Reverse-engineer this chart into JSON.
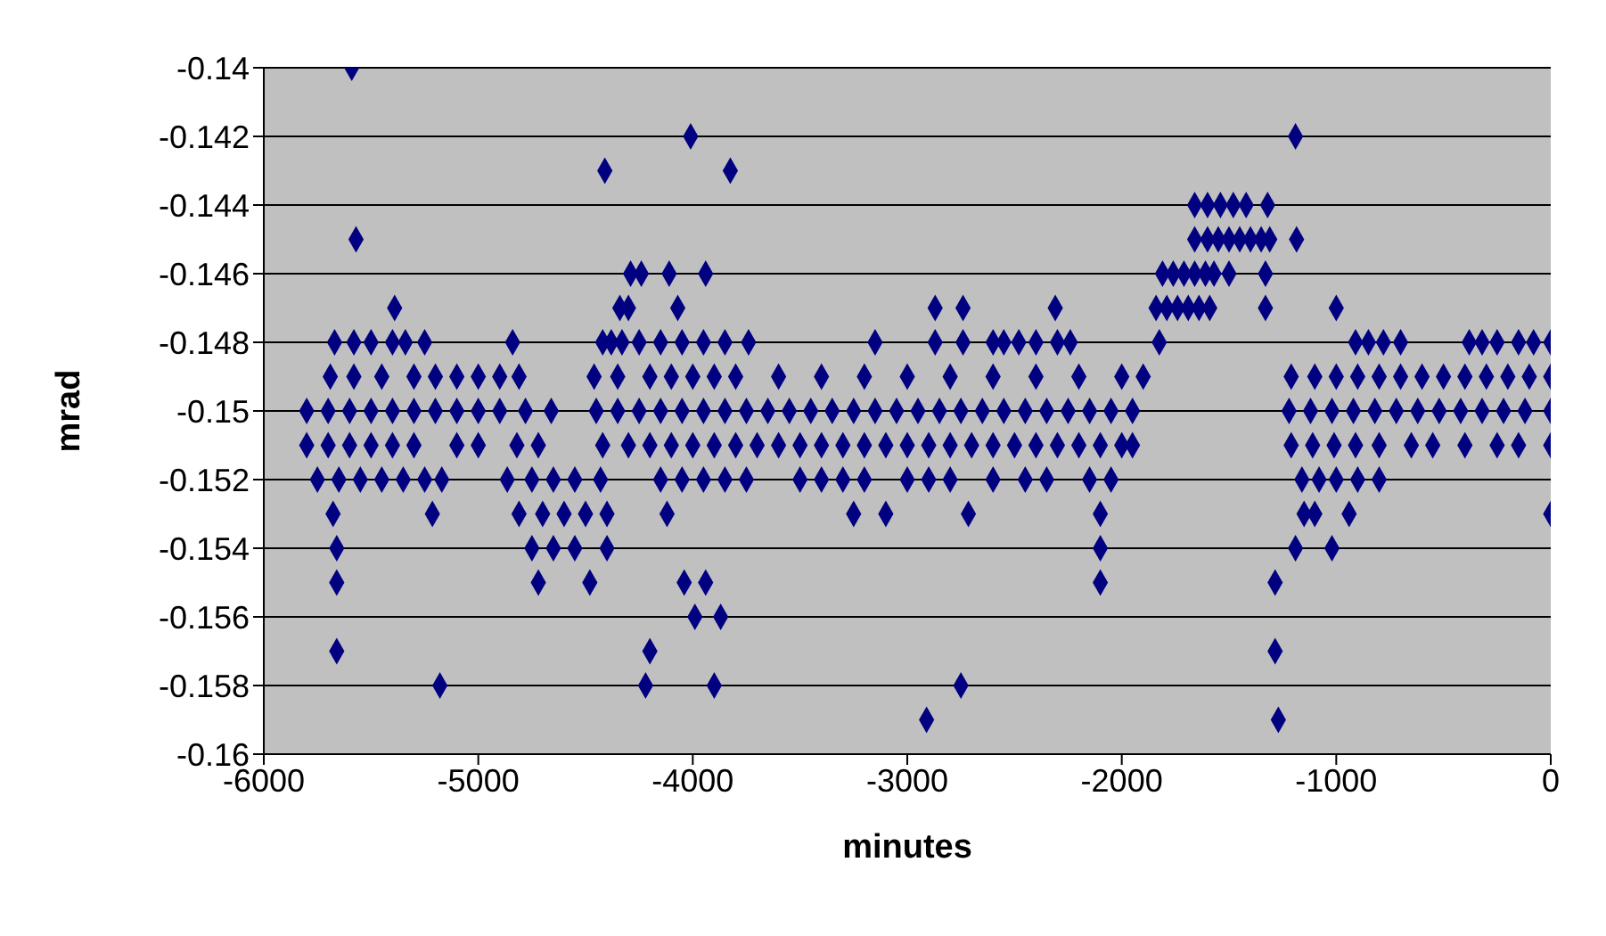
{
  "chart_data": {
    "type": "scatter",
    "xlabel": "minutes",
    "ylabel": "mrad",
    "xlim": [
      -6000,
      0
    ],
    "xticks": [
      -6000,
      -5000,
      -4000,
      -3000,
      -2000,
      -1000,
      0
    ],
    "ylim": [
      -0.16,
      -0.14
    ],
    "yticks": [
      -0.16,
      -0.158,
      -0.156,
      -0.154,
      -0.152,
      -0.15,
      -0.148,
      -0.146,
      -0.144,
      -0.142,
      -0.14
    ],
    "grid": "y",
    "legend": false,
    "marker": "diamond",
    "series": [
      {
        "color": "#000080",
        "x": [
          -5590
        ],
        "values": [
          -0.14
        ]
      },
      {
        "color": "#000080",
        "x": [
          -4010,
          -1190
        ],
        "values": [
          -0.142,
          -0.142
        ]
      },
      {
        "color": "#000080",
        "x": [
          -4410,
          -3825
        ],
        "values": [
          -0.143,
          -0.143
        ]
      },
      {
        "color": "#000080",
        "x": [
          -1660,
          -1600,
          -1540,
          -1480,
          -1420,
          -1320
        ],
        "values": [
          -0.144,
          -0.144,
          -0.144,
          -0.144,
          -0.144,
          -0.144
        ]
      },
      {
        "color": "#000080",
        "x": [
          -5570,
          -1660,
          -1600,
          -1550,
          -1500,
          -1450,
          -1400,
          -1350,
          -1310,
          -1185
        ],
        "values": [
          -0.145,
          -0.145,
          -0.145,
          -0.145,
          -0.145,
          -0.145,
          -0.145,
          -0.145,
          -0.145,
          -0.145
        ]
      },
      {
        "color": "#000080",
        "x": [
          -4290,
          -4240,
          -4110,
          -3940,
          -1810,
          -1760,
          -1710,
          -1660,
          -1610,
          -1570,
          -1500,
          -1330
        ],
        "values": [
          -0.146,
          -0.146,
          -0.146,
          -0.146,
          -0.146,
          -0.146,
          -0.146,
          -0.146,
          -0.146,
          -0.146,
          -0.146,
          -0.146
        ]
      },
      {
        "color": "#000080",
        "x": [
          -5390,
          -4340,
          -4300,
          -4070,
          -2870,
          -2740,
          -2310,
          -1840,
          -1790,
          -1740,
          -1690,
          -1640,
          -1590,
          -1330,
          -1000
        ],
        "values": [
          -0.147,
          -0.147,
          -0.147,
          -0.147,
          -0.147,
          -0.147,
          -0.147,
          -0.147,
          -0.147,
          -0.147,
          -0.147,
          -0.147,
          -0.147,
          -0.147,
          -0.147
        ]
      },
      {
        "color": "#000080",
        "x": [
          -5670,
          -5580,
          -5500,
          -5400,
          -5340,
          -5250,
          -4840,
          -4420,
          -4380,
          -4330,
          -4250,
          -4150,
          -4050,
          -3950,
          -3850,
          -3740,
          -3150,
          -2870,
          -2740,
          -2600,
          -2550,
          -2480,
          -2400,
          -2300,
          -2240,
          -1825,
          -910,
          -850,
          -780,
          -700,
          -380,
          -320,
          -250,
          -150,
          -80,
          0
        ],
        "values": [
          -0.148,
          -0.148,
          -0.148,
          -0.148,
          -0.148,
          -0.148,
          -0.148,
          -0.148,
          -0.148,
          -0.148,
          -0.148,
          -0.148,
          -0.148,
          -0.148,
          -0.148,
          -0.148,
          -0.148,
          -0.148,
          -0.148,
          -0.148,
          -0.148,
          -0.148,
          -0.148,
          -0.148,
          -0.148,
          -0.148,
          -0.148,
          -0.148,
          -0.148,
          -0.148,
          -0.148,
          -0.148,
          -0.148,
          -0.148,
          -0.148,
          -0.148
        ]
      },
      {
        "color": "#000080",
        "x": [
          -5690,
          -5580,
          -5450,
          -5300,
          -5200,
          -5100,
          -5000,
          -4900,
          -4810,
          -4460,
          -4350,
          -4200,
          -4100,
          -4000,
          -3900,
          -3800,
          -3600,
          -3400,
          -3200,
          -3000,
          -2800,
          -2600,
          -2400,
          -2200,
          -2000,
          -1900,
          -1210,
          -1100,
          -1000,
          -900,
          -800,
          -700,
          -600,
          -500,
          -400,
          -300,
          -200,
          -100,
          0
        ],
        "values": [
          -0.149,
          -0.149,
          -0.149,
          -0.149,
          -0.149,
          -0.149,
          -0.149,
          -0.149,
          -0.149,
          -0.149,
          -0.149,
          -0.149,
          -0.149,
          -0.149,
          -0.149,
          -0.149,
          -0.149,
          -0.149,
          -0.149,
          -0.149,
          -0.149,
          -0.149,
          -0.149,
          -0.149,
          -0.149,
          -0.149,
          -0.149,
          -0.149,
          -0.149,
          -0.149,
          -0.149,
          -0.149,
          -0.149,
          -0.149,
          -0.149,
          -0.149,
          -0.149,
          -0.149,
          -0.149
        ]
      },
      {
        "color": "#000080",
        "x": [
          -5800,
          -5700,
          -5600,
          -5500,
          -5400,
          -5300,
          -5200,
          -5100,
          -5000,
          -4900,
          -4780,
          -4660,
          -4450,
          -4350,
          -4250,
          -4150,
          -4050,
          -3950,
          -3850,
          -3750,
          -3650,
          -3550,
          -3450,
          -3350,
          -3250,
          -3150,
          -3050,
          -2950,
          -2850,
          -2750,
          -2650,
          -2550,
          -2450,
          -2350,
          -2250,
          -2150,
          -2050,
          -1950,
          -1220,
          -1120,
          -1020,
          -920,
          -820,
          -720,
          -620,
          -520,
          -420,
          -320,
          -220,
          -120,
          0
        ],
        "values": [
          -0.15,
          -0.15,
          -0.15,
          -0.15,
          -0.15,
          -0.15,
          -0.15,
          -0.15,
          -0.15,
          -0.15,
          -0.15,
          -0.15,
          -0.15,
          -0.15,
          -0.15,
          -0.15,
          -0.15,
          -0.15,
          -0.15,
          -0.15,
          -0.15,
          -0.15,
          -0.15,
          -0.15,
          -0.15,
          -0.15,
          -0.15,
          -0.15,
          -0.15,
          -0.15,
          -0.15,
          -0.15,
          -0.15,
          -0.15,
          -0.15,
          -0.15,
          -0.15,
          -0.15,
          -0.15,
          -0.15,
          -0.15,
          -0.15,
          -0.15,
          -0.15,
          -0.15,
          -0.15,
          -0.15,
          -0.15,
          -0.15,
          -0.15,
          -0.15
        ]
      },
      {
        "color": "#000080",
        "x": [
          -5800,
          -5700,
          -5600,
          -5500,
          -5400,
          -5300,
          -5100,
          -5000,
          -4820,
          -4720,
          -4420,
          -4300,
          -4200,
          -4100,
          -4000,
          -3900,
          -3800,
          -3700,
          -3600,
          -3500,
          -3400,
          -3300,
          -3200,
          -3100,
          -3000,
          -2900,
          -2800,
          -2700,
          -2600,
          -2500,
          -2400,
          -2300,
          -2200,
          -2100,
          -2000,
          -1950,
          -1210,
          -1110,
          -1010,
          -910,
          -800,
          -650,
          -550,
          -400,
          -250,
          -150,
          0
        ],
        "values": [
          -0.151,
          -0.151,
          -0.151,
          -0.151,
          -0.151,
          -0.151,
          -0.151,
          -0.151,
          -0.151,
          -0.151,
          -0.151,
          -0.151,
          -0.151,
          -0.151,
          -0.151,
          -0.151,
          -0.151,
          -0.151,
          -0.151,
          -0.151,
          -0.151,
          -0.151,
          -0.151,
          -0.151,
          -0.151,
          -0.151,
          -0.151,
          -0.151,
          -0.151,
          -0.151,
          -0.151,
          -0.151,
          -0.151,
          -0.151,
          -0.151,
          -0.151,
          -0.151,
          -0.151,
          -0.151,
          -0.151,
          -0.151,
          -0.151,
          -0.151,
          -0.151,
          -0.151,
          -0.151,
          -0.151
        ]
      },
      {
        "color": "#000080",
        "x": [
          -5750,
          -5650,
          -5550,
          -5450,
          -5350,
          -5250,
          -5170,
          -4865,
          -4750,
          -4650,
          -4550,
          -4430,
          -4150,
          -4050,
          -3950,
          -3850,
          -3750,
          -3500,
          -3400,
          -3300,
          -3200,
          -3000,
          -2900,
          -2800,
          -2600,
          -2450,
          -2350,
          -2150,
          -2050,
          -1160,
          -1080,
          -1000,
          -900,
          -800
        ],
        "values": [
          -0.152,
          -0.152,
          -0.152,
          -0.152,
          -0.152,
          -0.152,
          -0.152,
          -0.152,
          -0.152,
          -0.152,
          -0.152,
          -0.152,
          -0.152,
          -0.152,
          -0.152,
          -0.152,
          -0.152,
          -0.152,
          -0.152,
          -0.152,
          -0.152,
          -0.152,
          -0.152,
          -0.152,
          -0.152,
          -0.152,
          -0.152,
          -0.152,
          -0.152,
          -0.152,
          -0.152,
          -0.152,
          -0.152,
          -0.152
        ]
      },
      {
        "color": "#000080",
        "x": [
          -5677,
          -5214,
          -4810,
          -4700,
          -4600,
          -4500,
          -4400,
          -4120,
          -3250,
          -3100,
          -2715,
          -2100,
          -1150,
          -1100,
          -940,
          0
        ],
        "values": [
          -0.153,
          -0.153,
          -0.153,
          -0.153,
          -0.153,
          -0.153,
          -0.153,
          -0.153,
          -0.153,
          -0.153,
          -0.153,
          -0.153,
          -0.153,
          -0.153,
          -0.153,
          -0.153
        ]
      },
      {
        "color": "#000080",
        "x": [
          -5660,
          -4750,
          -4650,
          -4550,
          -4400,
          -2100,
          -1190,
          -1020
        ],
        "values": [
          -0.154,
          -0.154,
          -0.154,
          -0.154,
          -0.154,
          -0.154,
          -0.154,
          -0.154
        ]
      },
      {
        "color": "#000080",
        "x": [
          -5660,
          -4720,
          -4480,
          -4040,
          -3940,
          -2100,
          -1285
        ],
        "values": [
          -0.155,
          -0.155,
          -0.155,
          -0.155,
          -0.155,
          -0.155,
          -0.155
        ]
      },
      {
        "color": "#000080",
        "x": [
          -3990,
          -3870
        ],
        "values": [
          -0.156,
          -0.156
        ]
      },
      {
        "color": "#000080",
        "x": [
          -5660,
          -4200,
          -1285
        ],
        "values": [
          -0.157,
          -0.157,
          -0.157
        ]
      },
      {
        "color": "#000080",
        "x": [
          -5179,
          -4220,
          -3900,
          -2750
        ],
        "values": [
          -0.158,
          -0.158,
          -0.158,
          -0.158
        ]
      },
      {
        "color": "#000080",
        "x": [
          -2910,
          -1270
        ],
        "values": [
          -0.159,
          -0.159
        ]
      }
    ]
  }
}
